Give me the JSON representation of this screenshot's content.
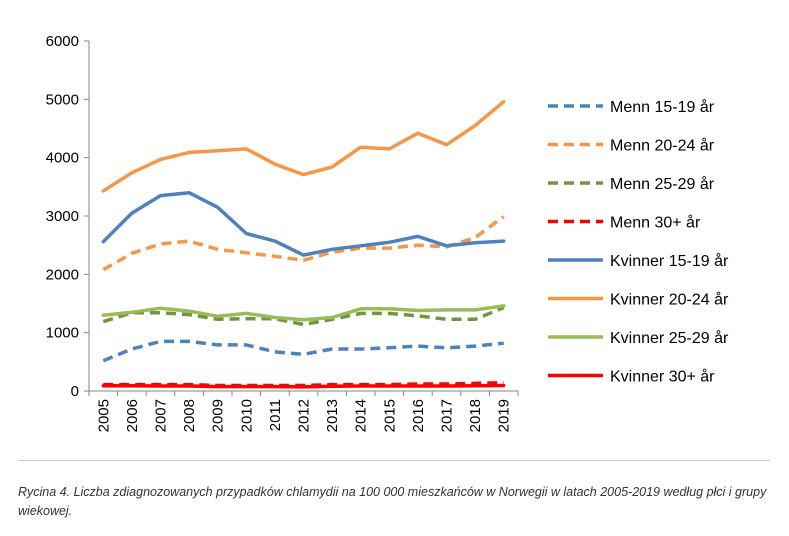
{
  "chart_data": {
    "type": "line",
    "title": "",
    "xlabel": "",
    "ylabel": "",
    "ylim": [
      0,
      6000
    ],
    "yticks": [
      0,
      1000,
      2000,
      3000,
      4000,
      5000,
      6000
    ],
    "y_tick_labels": [
      "0",
      "1000",
      "2000",
      "3000",
      "4000",
      "5000",
      "6000"
    ],
    "categories": [
      "2005",
      "2006",
      "2007",
      "2008",
      "2009",
      "2010",
      "2011",
      "2012",
      "2013",
      "2014",
      "2015",
      "2016",
      "2017",
      "2018",
      "2019"
    ],
    "legend_position": "right",
    "series": [
      {
        "name": "Menn 15-19 år",
        "color": "#4f81bd",
        "dashed": true,
        "values": [
          520,
          720,
          850,
          850,
          790,
          790,
          670,
          630,
          720,
          720,
          740,
          770,
          740,
          770,
          820
        ]
      },
      {
        "name": "Menn 20-24 år",
        "color": "#f79646",
        "dashed": true,
        "values": [
          2080,
          2360,
          2520,
          2570,
          2430,
          2370,
          2310,
          2240,
          2380,
          2450,
          2450,
          2500,
          2470,
          2630,
          2990
        ]
      },
      {
        "name": "Menn 25-29 år",
        "color": "#77933c",
        "dashed": true,
        "values": [
          1190,
          1340,
          1340,
          1310,
          1230,
          1240,
          1240,
          1140,
          1230,
          1330,
          1330,
          1290,
          1230,
          1230,
          1430
        ]
      },
      {
        "name": "Menn 30+ år",
        "color": "#ff0000",
        "dashed": true,
        "values": [
          110,
          110,
          110,
          110,
          95,
          95,
          95,
          95,
          110,
          110,
          110,
          120,
          120,
          130,
          140
        ]
      },
      {
        "name": "Kvinner 15-19 år",
        "color": "#4f81bd",
        "dashed": false,
        "values": [
          2560,
          3050,
          3350,
          3400,
          3150,
          2700,
          2570,
          2330,
          2430,
          2490,
          2550,
          2650,
          2490,
          2540,
          2570
        ]
      },
      {
        "name": "Kvinner 20-24 år",
        "color": "#f79646",
        "dashed": false,
        "values": [
          3430,
          3740,
          3970,
          4090,
          4120,
          4150,
          3890,
          3710,
          3840,
          4180,
          4150,
          4420,
          4220,
          4550,
          4960
        ]
      },
      {
        "name": "Kvinner 25-29 år",
        "color": "#9bbb59",
        "dashed": false,
        "values": [
          1300,
          1350,
          1420,
          1370,
          1280,
          1330,
          1260,
          1220,
          1260,
          1410,
          1410,
          1380,
          1390,
          1390,
          1460
        ]
      },
      {
        "name": "Kvinner 30+ år",
        "color": "#ff0000",
        "dashed": false,
        "values": [
          90,
          90,
          85,
          85,
          75,
          75,
          75,
          70,
          80,
          85,
          85,
          85,
          85,
          90,
          95
        ]
      }
    ]
  },
  "caption": "Rycina 4. Liczba zdiagnozowanych przypadków chlamydii na 100 000 mieszkańców w Norwegii w latach 2005-2019 według płci i grupy wiekowej."
}
